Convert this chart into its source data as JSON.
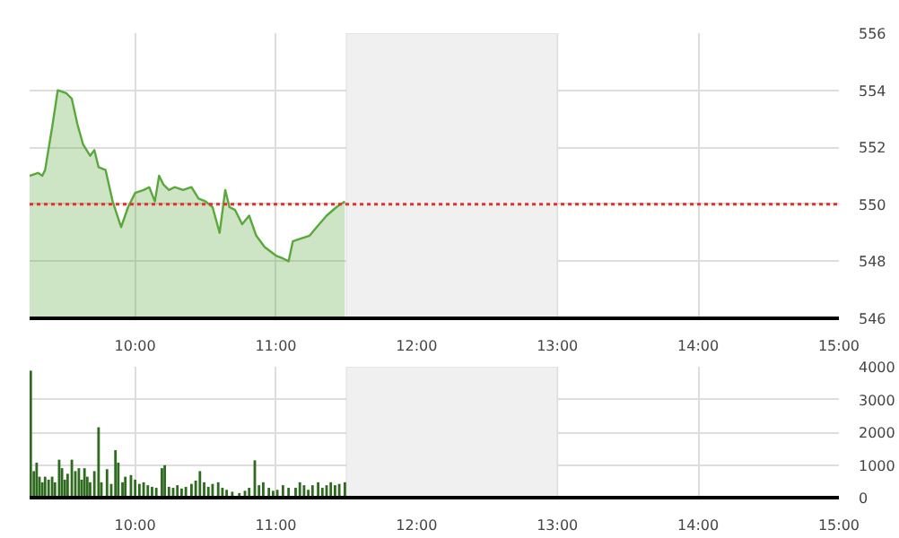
{
  "chart_data": [
    {
      "type": "area",
      "x": [
        9.25,
        9.31,
        9.34,
        9.36,
        9.41,
        9.45,
        9.51,
        9.55,
        9.59,
        9.63,
        9.68,
        9.71,
        9.74,
        9.79,
        9.84,
        9.9,
        9.95,
        10.0,
        10.06,
        10.1,
        10.14,
        10.17,
        10.2,
        10.24,
        10.28,
        10.34,
        10.4,
        10.45,
        10.5,
        10.55,
        10.6,
        10.64,
        10.67,
        10.71,
        10.76,
        10.81,
        10.86,
        10.92,
        11.0,
        11.05,
        11.09,
        11.12,
        11.18,
        11.24,
        11.29,
        11.36,
        11.43,
        11.49
      ],
      "series": [
        {
          "color": "#5aa83c",
          "values": [
            551.0,
            551.1,
            551.0,
            551.2,
            552.7,
            554.0,
            553.9,
            553.7,
            552.8,
            552.1,
            551.7,
            551.9,
            551.3,
            551.2,
            550.1,
            549.2,
            549.9,
            550.4,
            550.5,
            550.6,
            550.1,
            551.0,
            550.7,
            550.5,
            550.6,
            550.5,
            550.6,
            550.2,
            550.1,
            549.9,
            549.0,
            550.5,
            549.9,
            549.8,
            549.3,
            549.6,
            548.9,
            548.5,
            548.2,
            548.1,
            548.0,
            548.7,
            548.8,
            548.9,
            549.2,
            549.6,
            549.9,
            550.1
          ]
        }
      ],
      "xlim": [
        9.25,
        15
      ],
      "ylim": [
        546,
        556
      ],
      "xticks": [
        {
          "value": 10,
          "label": "10:00"
        },
        {
          "value": 11,
          "label": "11:00"
        },
        {
          "value": 12,
          "label": "12:00"
        },
        {
          "value": 13,
          "label": "13:00"
        },
        {
          "value": 14,
          "label": "14:00"
        },
        {
          "value": 15,
          "label": "15:00"
        }
      ],
      "yticks": [
        546,
        548,
        550,
        552,
        554,
        556
      ],
      "ref_lines": [
        {
          "axis": "y",
          "value": 550,
          "color": "#e8302a",
          "line_style": "dotted"
        }
      ],
      "bands": [
        {
          "axis": "x",
          "from": 11.5,
          "to": 13,
          "color": "#f0f0f0"
        }
      ],
      "grid": true
    },
    {
      "type": "bar",
      "x": [
        9.258,
        9.28,
        9.3,
        9.32,
        9.34,
        9.36,
        9.385,
        9.41,
        9.43,
        9.46,
        9.48,
        9.5,
        9.52,
        9.55,
        9.575,
        9.6,
        9.62,
        9.64,
        9.66,
        9.68,
        9.71,
        9.74,
        9.76,
        9.8,
        9.83,
        9.86,
        9.88,
        9.91,
        9.93,
        9.97,
        10.0,
        10.03,
        10.06,
        10.09,
        10.12,
        10.15,
        10.19,
        10.21,
        10.24,
        10.27,
        10.3,
        10.33,
        10.36,
        10.4,
        10.43,
        10.46,
        10.49,
        10.52,
        10.55,
        10.59,
        10.62,
        10.65,
        10.69,
        10.74,
        10.78,
        10.81,
        10.85,
        10.88,
        10.91,
        10.95,
        10.98,
        11.01,
        11.05,
        11.09,
        11.14,
        11.17,
        11.2,
        11.23,
        11.26,
        11.3,
        11.33,
        11.36,
        11.39,
        11.42,
        11.45,
        11.49
      ],
      "values": [
        3880,
        810,
        1070,
        640,
        470,
        640,
        550,
        640,
        470,
        1160,
        900,
        550,
        730,
        1160,
        810,
        900,
        550,
        900,
        640,
        470,
        810,
        2150,
        470,
        870,
        420,
        1450,
        1070,
        470,
        640,
        690,
        550,
        420,
        470,
        380,
        330,
        300,
        900,
        990,
        330,
        300,
        380,
        280,
        330,
        420,
        520,
        810,
        470,
        330,
        420,
        470,
        300,
        240,
        180,
        140,
        210,
        300,
        1140,
        380,
        470,
        300,
        210,
        240,
        380,
        300,
        300,
        470,
        380,
        240,
        380,
        470,
        300,
        380,
        470,
        380,
        420,
        470
      ],
      "color": "#2e6b1f",
      "xlim": [
        9.25,
        15
      ],
      "ylim": [
        0,
        4000
      ],
      "xticks": [
        {
          "value": 10,
          "label": "10:00"
        },
        {
          "value": 11,
          "label": "11:00"
        },
        {
          "value": 12,
          "label": "12:00"
        },
        {
          "value": 13,
          "label": "13:00"
        },
        {
          "value": 14,
          "label": "14:00"
        },
        {
          "value": 15,
          "label": "15:00"
        }
      ],
      "yticks": [
        0,
        1000,
        2000,
        3000,
        4000
      ],
      "bands": [
        {
          "axis": "x",
          "from": 11.5,
          "to": 13,
          "color": "#f0f0f0"
        }
      ],
      "grid": true
    }
  ]
}
